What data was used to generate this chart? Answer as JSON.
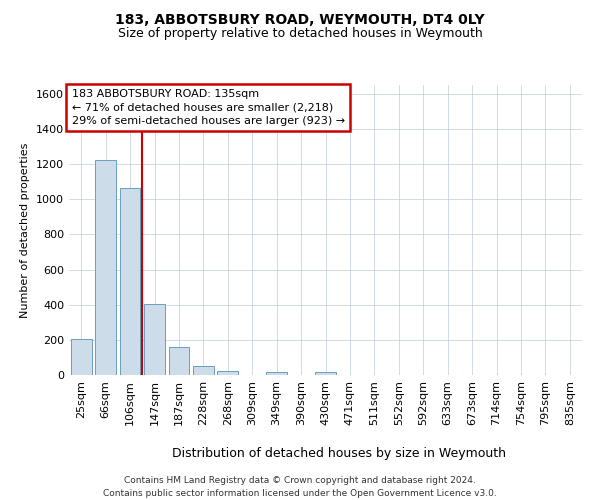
{
  "title1": "183, ABBOTSBURY ROAD, WEYMOUTH, DT4 0LY",
  "title2": "Size of property relative to detached houses in Weymouth",
  "xlabel": "Distribution of detached houses by size in Weymouth",
  "ylabel": "Number of detached properties",
  "categories": [
    "25sqm",
    "66sqm",
    "106sqm",
    "147sqm",
    "187sqm",
    "228sqm",
    "268sqm",
    "309sqm",
    "349sqm",
    "390sqm",
    "430sqm",
    "471sqm",
    "511sqm",
    "552sqm",
    "592sqm",
    "633sqm",
    "673sqm",
    "714sqm",
    "754sqm",
    "795sqm",
    "835sqm"
  ],
  "values": [
    205,
    1225,
    1065,
    405,
    158,
    52,
    22,
    0,
    15,
    0,
    15,
    0,
    0,
    0,
    0,
    0,
    0,
    0,
    0,
    0,
    0
  ],
  "bar_color": "#cddce9",
  "bar_edge_color": "#6a9fc0",
  "vline_x": 2.5,
  "vline_color": "#cc0000",
  "ylim": [
    0,
    1650
  ],
  "yticks": [
    0,
    200,
    400,
    600,
    800,
    1000,
    1200,
    1400,
    1600
  ],
  "annotation_text": "183 ABBOTSBURY ROAD: 135sqm\n← 71% of detached houses are smaller (2,218)\n29% of semi-detached houses are larger (923) →",
  "annotation_box_edgecolor": "#cc0000",
  "footnote": "Contains HM Land Registry data © Crown copyright and database right 2024.\nContains public sector information licensed under the Open Government Licence v3.0.",
  "bg_color": "#ffffff",
  "grid_color": "#c0ccd8",
  "title1_fontsize": 10,
  "title2_fontsize": 9,
  "ylabel_fontsize": 8,
  "xlabel_fontsize": 9,
  "tick_fontsize": 8,
  "xtick_fontsize": 8,
  "annotation_fontsize": 8,
  "footnote_fontsize": 6.5
}
